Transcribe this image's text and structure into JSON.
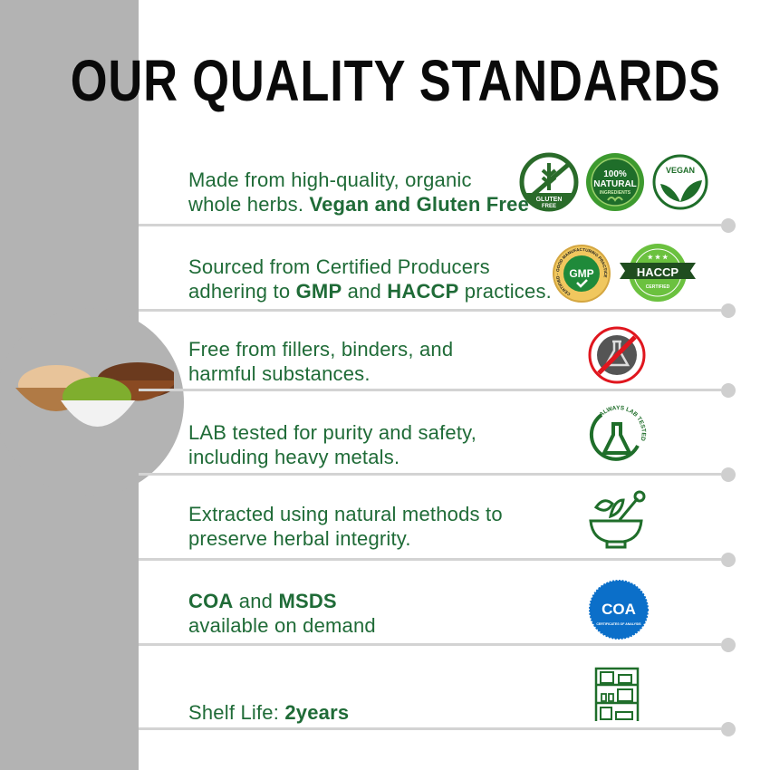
{
  "title": "OUR QUALITY STANDARDS",
  "colors": {
    "text_green": "#1f6b37",
    "sidebar_gray": "#b3b3b3",
    "separator": "#d3d3d3",
    "coa_blue": "#0b6fc9"
  },
  "rows": [
    {
      "line1": "Made from high-quality, organic",
      "line2_plain": "whole herbs. ",
      "line2_bold": "Vegan and Gluten Free",
      "badges": [
        {
          "icon": "gluten-free-badge",
          "text": "GLUTEN FREE"
        },
        {
          "icon": "natural-ingredients-badge",
          "text": "100% NATURAL INGREDIENTS"
        },
        {
          "icon": "vegan-badge",
          "text": "VEGAN"
        }
      ]
    },
    {
      "line1": "Sourced from Certified Producers",
      "line2_a": "adhering to ",
      "line2_b": "GMP",
      "line2_c": " and ",
      "line2_d": "HACCP",
      "line2_e": " practices.",
      "badges": [
        {
          "icon": "gmp-badge",
          "text": "GMP",
          "ring": "CERTIFIED · GOOD MANUFACTURING PRACTICE"
        },
        {
          "icon": "haccp-badge",
          "text": "HACCP",
          "sub": "CERTIFIED"
        }
      ]
    },
    {
      "line1": "Free from fillers, binders, and",
      "line2": "harmful substances.",
      "icon": "no-chemicals-icon"
    },
    {
      "line1": "LAB tested for purity and safety,",
      "line2": "including heavy metals.",
      "icon": "lab-tested-icon",
      "badge_text": "ALWAYS LAB TESTED"
    },
    {
      "line1": "Extracted using natural methods to",
      "line2": "preserve herbal integrity.",
      "icon": "mortar-pestle-icon"
    },
    {
      "line1_a": "COA",
      "line1_b": " and ",
      "line1_c": "MSDS",
      "line2": "available on demand",
      "icon": "coa-badge",
      "badge_text": "COA",
      "badge_sub": "CERTIFICATES OF ANALYSIS"
    },
    {
      "label": "Shelf Life: ",
      "value": "2years",
      "icon": "shelf-icon"
    }
  ]
}
